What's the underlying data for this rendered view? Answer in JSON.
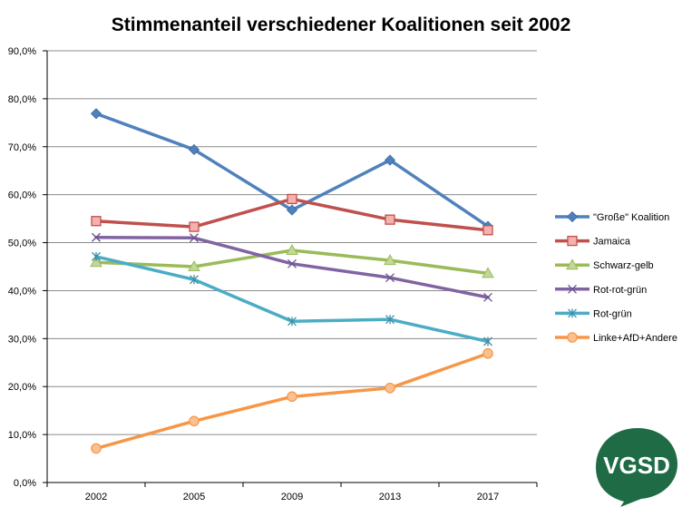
{
  "chart_data": {
    "type": "line",
    "title": "Stimmenanteil verschiedener Koalitionen seit 2002",
    "categories": [
      "2002",
      "2005",
      "2009",
      "2013",
      "2017"
    ],
    "ylim": [
      0,
      90
    ],
    "yticks": [
      0,
      10,
      20,
      30,
      40,
      50,
      60,
      70,
      80,
      90
    ],
    "ytick_labels": [
      "0,0%",
      "10,0%",
      "20,0%",
      "30,0%",
      "40,0%",
      "50,0%",
      "60,0%",
      "70,0%",
      "80,0%",
      "90,0%"
    ],
    "grid": "horizontal",
    "legend_position": "right",
    "series": [
      {
        "name": "\"Große\" Koalition",
        "values": [
          76.9,
          69.4,
          56.8,
          67.2,
          53.4
        ],
        "color": "#4f81bd",
        "marker": "diamond"
      },
      {
        "name": "Jamaica",
        "values": [
          54.5,
          53.3,
          59.1,
          54.8,
          52.6
        ],
        "color": "#c0504d",
        "marker": "square"
      },
      {
        "name": "Schwarz-gelb",
        "values": [
          45.9,
          45.0,
          48.4,
          46.3,
          43.6
        ],
        "color": "#9bbb59",
        "marker": "triangle"
      },
      {
        "name": "Rot-rot-grün",
        "values": [
          51.1,
          51.0,
          45.6,
          42.7,
          38.6
        ],
        "color": "#8064a2",
        "marker": "x"
      },
      {
        "name": "Rot-grün",
        "values": [
          47.1,
          42.3,
          33.6,
          34.0,
          29.4
        ],
        "color": "#4bacc6",
        "marker": "star"
      },
      {
        "name": "Linke+AfD+Andere",
        "values": [
          7.1,
          12.8,
          17.9,
          19.7,
          26.9
        ],
        "color": "#f79646",
        "marker": "circle"
      }
    ]
  },
  "logo": {
    "text": "VGSD",
    "color": "#1f6b45"
  }
}
